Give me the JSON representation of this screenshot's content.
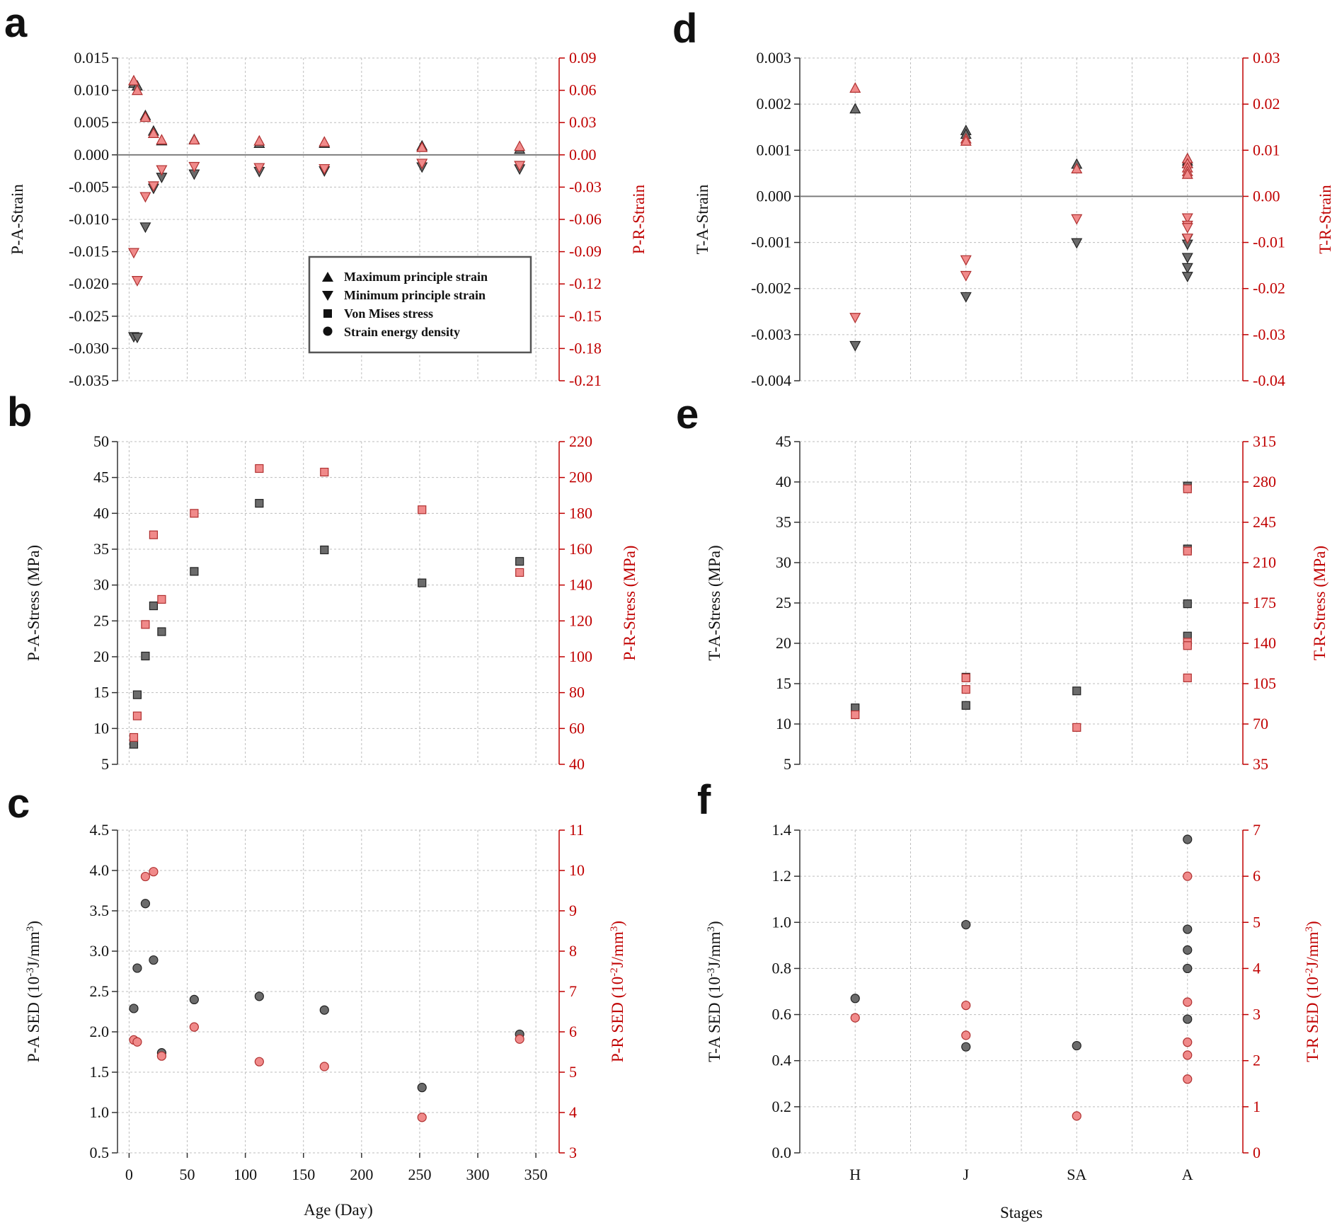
{
  "panel_letters": [
    "a",
    "b",
    "c",
    "d",
    "e",
    "f"
  ],
  "legend": {
    "entries": [
      {
        "marker": "triangle-up",
        "label": "Maximum principle strain"
      },
      {
        "marker": "triangle-down",
        "label": "Minimum principle strain"
      },
      {
        "marker": "square",
        "label": "Von Mises stress"
      },
      {
        "marker": "circle",
        "label": "Strain energy density"
      }
    ]
  },
  "colors": {
    "A_series": "#6b6b6b",
    "R_series": "#f08a8a",
    "right_axis": "#c00000",
    "grid": "#bdbdbd"
  },
  "chart_data": [
    {
      "panel": "a",
      "type": "scatter",
      "xlabel": "",
      "ylabel": "P-A-Strain",
      "ylabel_right": "P-R-Strain",
      "xlim": [
        -10,
        370
      ],
      "ylim": [
        -0.035,
        0.015
      ],
      "ylim_right": [
        -0.21,
        0.09
      ],
      "yticks": [
        "0.015",
        "0.010",
        "0.005",
        "0.000",
        "-0.005",
        "-0.010",
        "-0.015",
        "-0.020",
        "-0.025",
        "-0.030",
        "-0.035"
      ],
      "yticks_right": [
        "0.09",
        "0.06",
        "0.03",
        "0.00",
        "-0.03",
        "-0.06",
        "-0.09",
        "-0.12",
        "-0.15",
        "-0.18",
        "-0.21"
      ],
      "xticks": [],
      "zero_line": true,
      "grid": true,
      "series": [
        {
          "axis": "left",
          "marker": "triangle-up",
          "points": [
            [
              4,
              0.0111
            ],
            [
              7,
              0.0107
            ],
            [
              14,
              0.0061
            ],
            [
              21,
              0.0037
            ],
            [
              28,
              0.0022
            ],
            [
              56,
              0.0024
            ],
            [
              112,
              0.0018
            ],
            [
              168,
              0.0018
            ],
            [
              252,
              0.0014
            ],
            [
              336,
              0.0009
            ]
          ]
        },
        {
          "axis": "left",
          "marker": "triangle-down",
          "points": [
            [
              4,
              -0.0282
            ],
            [
              7,
              -0.0283
            ],
            [
              14,
              -0.0112
            ],
            [
              21,
              -0.0052
            ],
            [
              28,
              -0.0035
            ],
            [
              56,
              -0.003
            ],
            [
              112,
              -0.0026
            ],
            [
              168,
              -0.0025
            ],
            [
              252,
              -0.0019
            ],
            [
              336,
              -0.0022
            ]
          ]
        },
        {
          "axis": "right",
          "marker": "triangle-up",
          "points": [
            [
              4,
              0.069
            ],
            [
              7,
              0.06
            ],
            [
              14,
              0.035
            ],
            [
              21,
              0.02
            ],
            [
              28,
              0.014
            ],
            [
              56,
              0.014
            ],
            [
              112,
              0.013
            ],
            [
              168,
              0.012
            ],
            [
              252,
              0.007
            ],
            [
              336,
              0.008
            ]
          ]
        },
        {
          "axis": "right",
          "marker": "triangle-down",
          "points": [
            [
              4,
              -0.091
            ],
            [
              7,
              -0.117
            ],
            [
              14,
              -0.039
            ],
            [
              21,
              -0.029
            ],
            [
              28,
              -0.014
            ],
            [
              56,
              -0.011
            ],
            [
              112,
              -0.012
            ],
            [
              168,
              -0.013
            ],
            [
              252,
              -0.008
            ],
            [
              336,
              -0.01
            ]
          ]
        }
      ]
    },
    {
      "panel": "b",
      "type": "scatter",
      "xlabel": "",
      "ylabel": "P-A-Stress (MPa)",
      "ylabel_right": "P-R-Stress (MPa)",
      "xlim": [
        -10,
        370
      ],
      "ylim": [
        5,
        50
      ],
      "ylim_right": [
        40,
        220
      ],
      "yticks": [
        "50",
        "45",
        "40",
        "35",
        "30",
        "25",
        "20",
        "15",
        "10",
        "5"
      ],
      "yticks_right": [
        "220",
        "200",
        "180",
        "160",
        "140",
        "120",
        "100",
        "80",
        "60",
        "40"
      ],
      "xticks": [],
      "zero_line": false,
      "grid": true,
      "series": [
        {
          "axis": "left",
          "marker": "square",
          "points": [
            [
              4,
              7.8
            ],
            [
              7,
              14.7
            ],
            [
              14,
              20.1
            ],
            [
              21,
              27.1
            ],
            [
              28,
              23.5
            ],
            [
              56,
              31.9
            ],
            [
              112,
              41.4
            ],
            [
              168,
              34.9
            ],
            [
              252,
              30.3
            ],
            [
              336,
              33.3
            ]
          ]
        },
        {
          "axis": "right",
          "marker": "square",
          "points": [
            [
              4,
              55
            ],
            [
              7,
              67
            ],
            [
              14,
              118
            ],
            [
              21,
              168
            ],
            [
              28,
              132
            ],
            [
              56,
              180
            ],
            [
              112,
              205
            ],
            [
              168,
              203
            ],
            [
              252,
              182
            ],
            [
              336,
              147
            ]
          ]
        }
      ]
    },
    {
      "panel": "c",
      "type": "scatter",
      "xlabel": "Age (Day)",
      "ylabel": "P-A SED (10-3J/mm3)",
      "ylabel_right": "P-R SED (10-2J/mm3)",
      "xlim": [
        -10,
        370
      ],
      "ylim": [
        0.5,
        4.5
      ],
      "ylim_right": [
        3,
        11
      ],
      "yticks": [
        "4.5",
        "4.0",
        "3.5",
        "3.0",
        "2.5",
        "2.0",
        "1.5",
        "1.0",
        "0.5"
      ],
      "yticks_right": [
        "11",
        "10",
        "9",
        "8",
        "7",
        "6",
        "5",
        "4",
        "3"
      ],
      "xticks": [
        "0",
        "50",
        "100",
        "150",
        "200",
        "250",
        "300",
        "350"
      ],
      "zero_line": false,
      "grid": true,
      "series": [
        {
          "axis": "left",
          "marker": "circle",
          "points": [
            [
              4,
              2.29
            ],
            [
              7,
              2.79
            ],
            [
              14,
              3.59
            ],
            [
              21,
              2.89
            ],
            [
              28,
              1.74
            ],
            [
              56,
              2.4
            ],
            [
              112,
              2.44
            ],
            [
              168,
              2.27
            ],
            [
              252,
              1.31
            ],
            [
              336,
              1.97
            ]
          ]
        },
        {
          "axis": "right",
          "marker": "circle",
          "points": [
            [
              4,
              5.8
            ],
            [
              7,
              5.75
            ],
            [
              14,
              9.85
            ],
            [
              21,
              9.97
            ],
            [
              28,
              5.4
            ],
            [
              56,
              6.12
            ],
            [
              112,
              5.26
            ],
            [
              168,
              5.14
            ],
            [
              252,
              3.88
            ],
            [
              336,
              5.82
            ]
          ]
        }
      ]
    },
    {
      "panel": "d",
      "type": "scatter",
      "xlabel": "",
      "ylabel": "T-A-Strain",
      "ylabel_right": "T-R-Strain",
      "categories": [
        "H",
        "J",
        "SA",
        "A"
      ],
      "xlim": [
        -0.5,
        3.5
      ],
      "ylim": [
        -0.004,
        0.003
      ],
      "ylim_right": [
        -0.04,
        0.03
      ],
      "yticks": [
        "0.003",
        "0.002",
        "0.001",
        "0.000",
        "-0.001",
        "-0.002",
        "-0.003",
        "-0.004"
      ],
      "yticks_right": [
        "0.03",
        "0.02",
        "0.01",
        "0.00",
        "-0.01",
        "-0.02",
        "-0.03",
        "-0.04"
      ],
      "xticks": [],
      "zero_line": true,
      "grid": true,
      "series": [
        {
          "axis": "left",
          "marker": "triangle-up",
          "points": [
            [
              0,
              0.0019
            ],
            [
              1,
              0.00143
            ],
            [
              1,
              0.00135
            ],
            [
              2,
              0.0007
            ],
            [
              3,
              0.00082
            ],
            [
              3,
              0.00077
            ],
            [
              3,
              0.00072
            ]
          ]
        },
        {
          "axis": "left",
          "marker": "triangle-down",
          "points": [
            [
              0,
              -0.00324
            ],
            [
              1,
              -0.00218
            ],
            [
              2,
              -0.00101
            ],
            [
              3,
              -0.00092
            ],
            [
              3,
              -0.00104
            ],
            [
              3,
              -0.00133
            ],
            [
              3,
              -0.00155
            ],
            [
              3,
              -0.00174
            ]
          ]
        },
        {
          "axis": "right",
          "marker": "triangle-up",
          "points": [
            [
              0,
              0.0235
            ],
            [
              1,
              0.0125
            ],
            [
              1,
              0.012
            ],
            [
              2,
              0.006
            ],
            [
              3,
              0.0082
            ],
            [
              3,
              0.0071
            ],
            [
              3,
              0.0062
            ],
            [
              3,
              0.0054
            ],
            [
              3,
              0.0048
            ]
          ]
        },
        {
          "axis": "right",
          "marker": "triangle-down",
          "points": [
            [
              0,
              -0.0263
            ],
            [
              1,
              -0.0138
            ],
            [
              1,
              -0.0172
            ],
            [
              2,
              -0.0049
            ],
            [
              3,
              -0.0047
            ],
            [
              3,
              -0.0063
            ],
            [
              3,
              -0.0068
            ],
            [
              3,
              -0.0091
            ]
          ]
        }
      ]
    },
    {
      "panel": "e",
      "type": "scatter",
      "xlabel": "",
      "ylabel": "T-A-Stress (MPa)",
      "ylabel_right": "T-R-Stress (MPa)",
      "categories": [
        "H",
        "J",
        "SA",
        "A"
      ],
      "xlim": [
        -0.5,
        3.5
      ],
      "ylim": [
        5,
        45
      ],
      "ylim_right": [
        35,
        315
      ],
      "yticks": [
        "45",
        "40",
        "35",
        "30",
        "25",
        "20",
        "15",
        "10",
        "5"
      ],
      "yticks_right": [
        "315",
        "280",
        "245",
        "210",
        "175",
        "140",
        "105",
        "70",
        "35"
      ],
      "xticks": [],
      "zero_line": false,
      "grid": true,
      "series": [
        {
          "axis": "left",
          "marker": "square",
          "points": [
            [
              0,
              12.0
            ],
            [
              1,
              12.3
            ],
            [
              1,
              15.8
            ],
            [
              2,
              14.1
            ],
            [
              3,
              39.5
            ],
            [
              3,
              31.7
            ],
            [
              3,
              24.9
            ],
            [
              3,
              20.9
            ]
          ]
        },
        {
          "axis": "right",
          "marker": "square",
          "points": [
            [
              0,
              78
            ],
            [
              1,
              100
            ],
            [
              1,
              110
            ],
            [
              2,
              67
            ],
            [
              3,
              274
            ],
            [
              3,
              220
            ],
            [
              3,
              141
            ],
            [
              3,
              138
            ],
            [
              3,
              110
            ]
          ]
        }
      ]
    },
    {
      "panel": "f",
      "type": "scatter",
      "xlabel": "Stages",
      "ylabel": "T-A SED (10-3J/mm3)",
      "ylabel_right": "T-R SED (10-2J/mm3)",
      "categories": [
        "H",
        "J",
        "SA",
        "A"
      ],
      "xlim": [
        -0.5,
        3.5
      ],
      "ylim": [
        0.0,
        1.4
      ],
      "ylim_right": [
        0,
        7
      ],
      "yticks": [
        "1.4",
        "1.2",
        "1.0",
        "0.8",
        "0.6",
        "0.4",
        "0.2",
        "0.0"
      ],
      "yticks_right": [
        "7",
        "6",
        "5",
        "4",
        "3",
        "2",
        "1",
        "0"
      ],
      "xticks": [
        "H",
        "J",
        "SA",
        "A"
      ],
      "zero_line": false,
      "grid": true,
      "series": [
        {
          "axis": "left",
          "marker": "circle",
          "points": [
            [
              0,
              0.67
            ],
            [
              1,
              0.99
            ],
            [
              1,
              0.46
            ],
            [
              2,
              0.465
            ],
            [
              3,
              1.36
            ],
            [
              3,
              0.97
            ],
            [
              3,
              0.88
            ],
            [
              3,
              0.8
            ],
            [
              3,
              0.58
            ]
          ]
        },
        {
          "axis": "right",
          "marker": "circle",
          "points": [
            [
              0,
              2.93
            ],
            [
              1,
              3.2
            ],
            [
              1,
              2.55
            ],
            [
              2,
              0.8
            ],
            [
              3,
              6.0
            ],
            [
              3,
              3.27
            ],
            [
              3,
              2.4
            ],
            [
              3,
              2.12
            ],
            [
              3,
              1.6
            ]
          ]
        }
      ]
    }
  ]
}
